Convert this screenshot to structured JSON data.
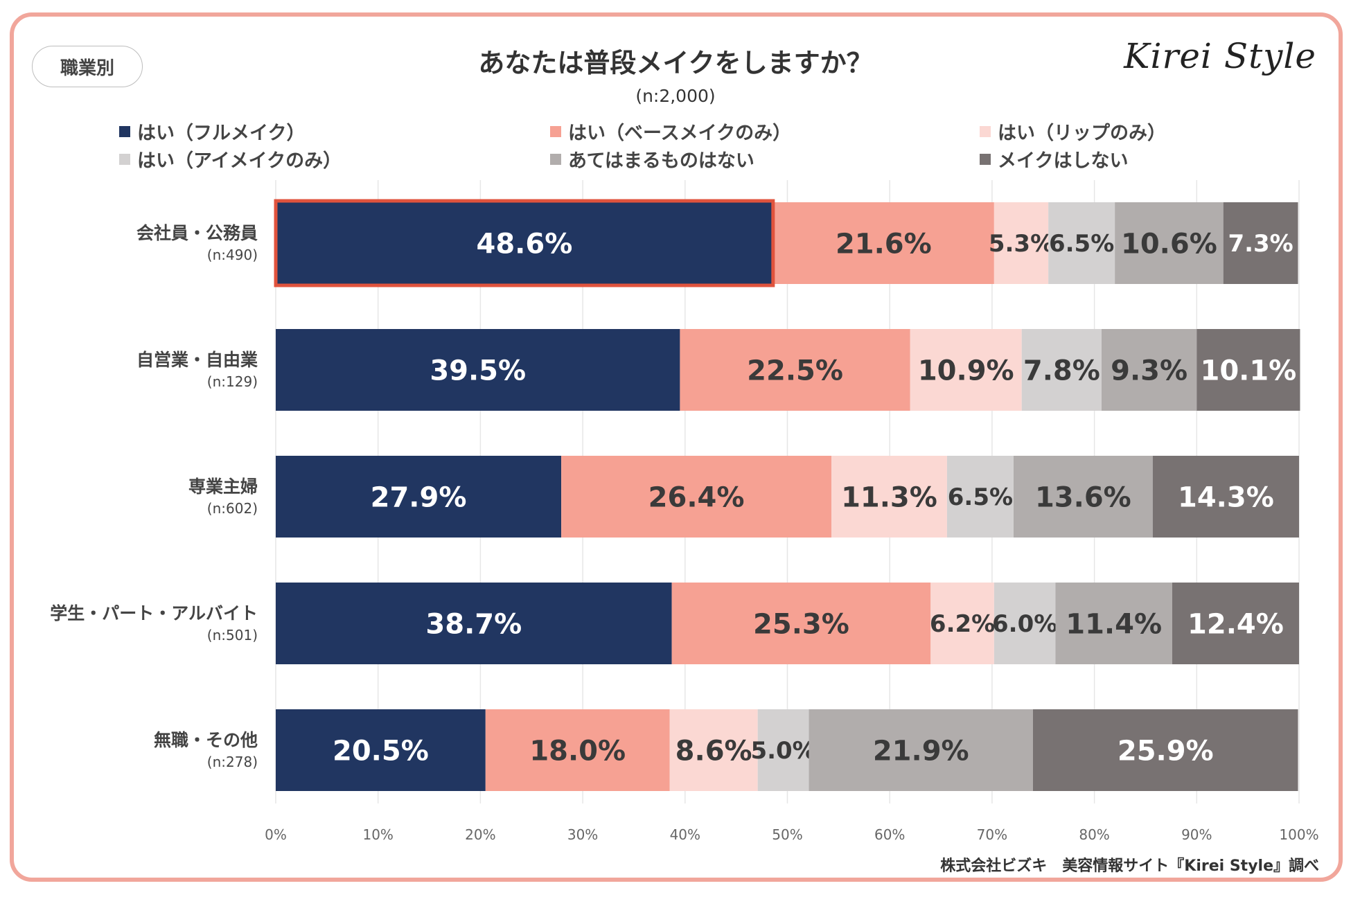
{
  "badge": "職業別",
  "logo": "Kirei Style",
  "source": "株式会社ビズキ　美容情報サイト『Kirei Style』調べ",
  "colors": {
    "full": "#213661",
    "base": "#f6a193",
    "lip": "#fbd8d3",
    "eye": "#d3d1d1",
    "none_apply": "#b1adac",
    "no_makeup": "#787272",
    "highlight": "#e0533d",
    "grid": "#e6e6e6"
  },
  "chart_data": {
    "type": "bar",
    "orientation": "horizontal-stacked-100",
    "title": "あなたは普段メイクをしますか？",
    "subtitle": "(n:2,000)",
    "categories": [
      {
        "label": "会社員・公務員",
        "n": "(n:490)"
      },
      {
        "label": "自営業・自由業",
        "n": "(n:129)"
      },
      {
        "label": "専業主婦",
        "n": "(n:602)"
      },
      {
        "label": "学生・パート・アルバイト",
        "n": "(n:501)"
      },
      {
        "label": "無職・その他",
        "n": "(n:278)"
      }
    ],
    "series": [
      {
        "name": "はい（フルメイク）",
        "color_key": "full",
        "label_color": "#ffffff",
        "values": [
          48.6,
          39.5,
          27.9,
          38.7,
          20.5
        ]
      },
      {
        "name": "はい（ベースメイクのみ）",
        "color_key": "base",
        "label_color": "#3a3a3a",
        "values": [
          21.6,
          22.5,
          26.4,
          25.3,
          18.0
        ]
      },
      {
        "name": "はい（リップのみ）",
        "color_key": "lip",
        "label_color": "#3a3a3a",
        "values": [
          5.3,
          10.9,
          11.3,
          6.2,
          8.6
        ]
      },
      {
        "name": "はい（アイメイクのみ）",
        "color_key": "eye",
        "label_color": "#3a3a3a",
        "values": [
          6.5,
          7.8,
          6.5,
          6.0,
          5.0
        ]
      },
      {
        "name": "あてはまるものはない",
        "color_key": "none_apply",
        "label_color": "#3a3a3a",
        "values": [
          10.6,
          9.3,
          13.6,
          11.4,
          21.9
        ]
      },
      {
        "name": "メイクはしない",
        "color_key": "no_makeup",
        "label_color": "#ffffff",
        "values": [
          7.3,
          10.1,
          14.3,
          12.4,
          25.9
        ]
      }
    ],
    "value_labels": [
      [
        "48.6%",
        "21.6%",
        "5.3%",
        "6.5%",
        "10.6%",
        "7.3%"
      ],
      [
        "39.5%",
        "22.5%",
        "10.9%",
        "7.8%",
        "9.3%",
        "10.1%"
      ],
      [
        "27.9%",
        "26.4%",
        "11.3%",
        "6.5%",
        "13.6%",
        "14.3%"
      ],
      [
        "38.7%",
        "25.3%",
        "6.2%",
        "6.0%",
        "11.4%",
        "12.4%"
      ],
      [
        "20.5%",
        "18.0%",
        "8.6%",
        "5.0%",
        "21.9%",
        "25.9%"
      ]
    ],
    "xlim": [
      0,
      100
    ],
    "xticks": [
      "0%",
      "10%",
      "20%",
      "30%",
      "40%",
      "50%",
      "60%",
      "70%",
      "80%",
      "90%",
      "100%"
    ],
    "highlighted": {
      "category": "会社員・公務員",
      "series": "はい（フルメイク）"
    },
    "legend_position": "top",
    "grid": true
  }
}
